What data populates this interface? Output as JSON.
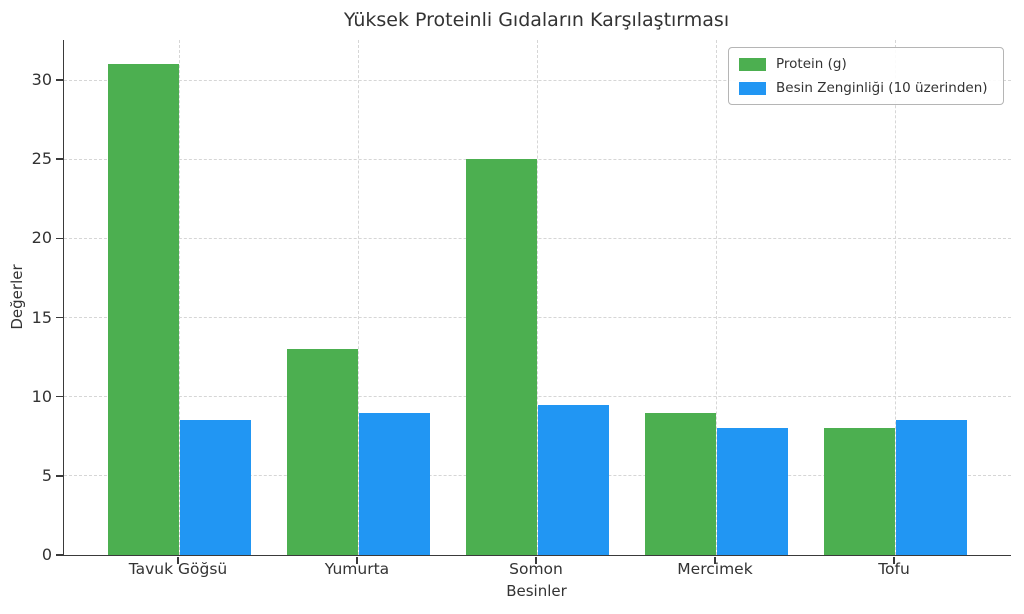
{
  "chart_data": {
    "type": "bar",
    "title": "Yüksek Proteinli Gıdaların Karşılaştırması",
    "xlabel": "Besinler",
    "ylabel": "Değerler",
    "categories": [
      "Tavuk Göğsü",
      "Yumurta",
      "Somon",
      "Mercimek",
      "Tofu"
    ],
    "series": [
      {
        "name": "Protein (g)",
        "color": "#4caf50",
        "values": [
          31,
          13,
          25,
          9,
          8
        ]
      },
      {
        "name": "Besin Zenginliği (10 üzerinden)",
        "color": "#2196f3",
        "values": [
          8.5,
          9,
          9.5,
          8,
          8.5
        ]
      }
    ],
    "ylim": [
      0,
      32.5
    ],
    "yticks": [
      0,
      5,
      10,
      15,
      20,
      25,
      30
    ],
    "grid": true,
    "grid_style": "dashed",
    "legend_position": "upper right",
    "colors": {
      "background": "#ffffff",
      "text": "#333333",
      "spine": "#3a3a3a",
      "gridline": "#d6d6d6"
    }
  }
}
